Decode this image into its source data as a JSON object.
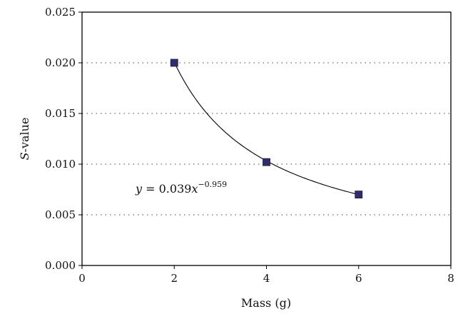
{
  "chart_data": {
    "type": "scatter",
    "title": "",
    "xlabel": "Mass (g)",
    "ylabel_prefix": "S",
    "ylabel_suffix": "-value",
    "xlim": [
      0,
      8
    ],
    "ylim": [
      0,
      0.025
    ],
    "x_ticks": [
      0,
      2,
      4,
      6,
      8
    ],
    "x_tick_labels": [
      "0",
      "2",
      "4",
      "6",
      "8"
    ],
    "y_ticks": [
      0,
      0.005,
      0.01,
      0.015,
      0.02,
      0.025
    ],
    "y_tick_labels": [
      "0.000",
      "0.005",
      "0.010",
      "0.015",
      "0.020",
      "0.025"
    ],
    "grid": "horizontal dotted",
    "marker": "square",
    "marker_color": "#2e2e6e",
    "series": [
      {
        "x": [
          2,
          4,
          6
        ],
        "y": [
          0.02,
          0.0102,
          0.007
        ]
      }
    ],
    "trendline": {
      "type": "power",
      "coefficient": 0.039,
      "exponent": -0.959,
      "x_range": [
        2,
        6
      ],
      "label_y": "y",
      "label_equals": " = 0.039",
      "label_x": "x",
      "label_exponent": "−0.959"
    }
  }
}
